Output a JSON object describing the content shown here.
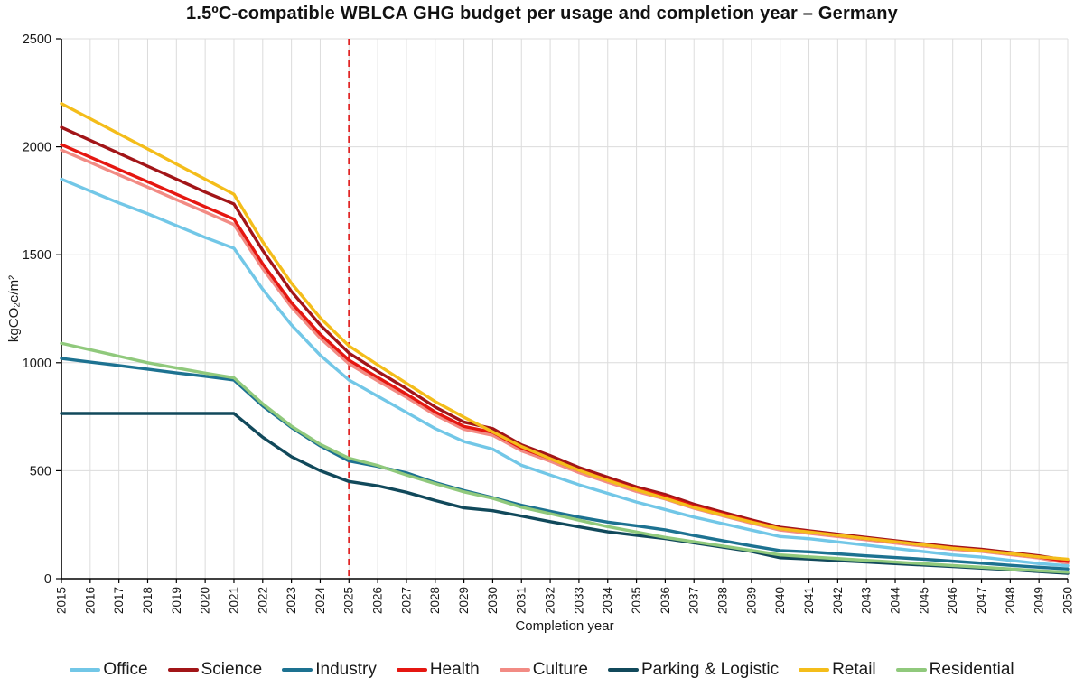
{
  "title": "1.5ºC-compatible WBLCA GHG budget per usage and completion year – Germany",
  "chart_data": {
    "type": "line",
    "xlabel": "Completion year",
    "ylabel": "kgCO₂e/m²",
    "ylim": [
      0,
      2500
    ],
    "yticks": [
      0,
      500,
      1000,
      1500,
      2000,
      2500
    ],
    "grid": true,
    "grid_color": "#DCDCDC",
    "axis_color": "#000000",
    "legend_position": "bottom",
    "x": [
      2015,
      2016,
      2017,
      2018,
      2019,
      2020,
      2021,
      2022,
      2023,
      2024,
      2025,
      2026,
      2027,
      2028,
      2029,
      2030,
      2031,
      2032,
      2033,
      2034,
      2035,
      2036,
      2037,
      2038,
      2039,
      2040,
      2041,
      2042,
      2043,
      2044,
      2045,
      2046,
      2047,
      2048,
      2049,
      2050
    ],
    "vline": {
      "x": 2025,
      "color": "#E02424",
      "style": "dashed"
    },
    "series": [
      {
        "name": "Office",
        "color": "#72C7E7",
        "values": [
          1850,
          1795,
          1740,
          1690,
          1635,
          1580,
          1530,
          1340,
          1175,
          1035,
          920,
          845,
          770,
          695,
          635,
          600,
          525,
          480,
          435,
          395,
          355,
          320,
          285,
          255,
          225,
          195,
          185,
          170,
          155,
          140,
          125,
          110,
          100,
          85,
          70,
          60
        ]
      },
      {
        "name": "Science",
        "color": "#A21518",
        "values": [
          2090,
          2030,
          1970,
          1910,
          1850,
          1790,
          1735,
          1520,
          1330,
          1175,
          1045,
          960,
          880,
          795,
          725,
          695,
          620,
          570,
          515,
          470,
          425,
          390,
          345,
          308,
          272,
          238,
          222,
          206,
          191,
          176,
          161,
          147,
          136,
          121,
          106,
          85
        ]
      },
      {
        "name": "Industry",
        "color": "#1D7291",
        "values": [
          1020,
          1003,
          987,
          970,
          953,
          937,
          920,
          800,
          700,
          615,
          545,
          520,
          490,
          445,
          408,
          375,
          340,
          312,
          285,
          262,
          245,
          226,
          200,
          176,
          152,
          130,
          124,
          115,
          106,
          98,
          90,
          81,
          72,
          62,
          53,
          45
        ]
      },
      {
        "name": "Health",
        "color": "#E51711",
        "values": [
          2010,
          1952,
          1895,
          1838,
          1780,
          1722,
          1665,
          1458,
          1278,
          1132,
          1012,
          932,
          855,
          772,
          705,
          678,
          605,
          556,
          502,
          458,
          415,
          380,
          336,
          300,
          265,
          232,
          217,
          201,
          186,
          171,
          156,
          142,
          131,
          116,
          101,
          80
        ]
      },
      {
        "name": "Culture",
        "color": "#F28B84",
        "values": [
          1985,
          1928,
          1870,
          1813,
          1755,
          1698,
          1640,
          1436,
          1258,
          1114,
          995,
          916,
          840,
          758,
          692,
          664,
          592,
          544,
          491,
          447,
          404,
          369,
          326,
          291,
          257,
          225,
          210,
          195,
          180,
          165,
          150,
          136,
          126,
          111,
          96,
          72
        ]
      },
      {
        "name": "Parking & Logistic",
        "color": "#11495B",
        "values": [
          765,
          765,
          765,
          765,
          765,
          765,
          765,
          655,
          565,
          500,
          450,
          430,
          400,
          362,
          328,
          315,
          290,
          264,
          240,
          217,
          201,
          186,
          166,
          146,
          126,
          97,
          91,
          84,
          77,
          70,
          63,
          56,
          49,
          42,
          33,
          25
        ]
      },
      {
        "name": "Retail",
        "color": "#F4BD1A",
        "values": [
          2200,
          2130,
          2060,
          1990,
          1920,
          1850,
          1780,
          1560,
          1368,
          1208,
          1078,
          990,
          905,
          820,
          748,
          680,
          612,
          556,
          502,
          455,
          412,
          372,
          330,
          295,
          262,
          231,
          216,
          201,
          186,
          171,
          156,
          141,
          130,
          116,
          101,
          90
        ]
      },
      {
        "name": "Residential",
        "color": "#90C97C",
        "values": [
          1090,
          1060,
          1030,
          1000,
          976,
          952,
          930,
          810,
          706,
          622,
          558,
          524,
          480,
          440,
          402,
          372,
          331,
          301,
          271,
          241,
          216,
          191,
          171,
          151,
          131,
          110,
          101,
          93,
          85,
          77,
          69,
          61,
          53,
          45,
          37,
          30
        ]
      }
    ]
  }
}
